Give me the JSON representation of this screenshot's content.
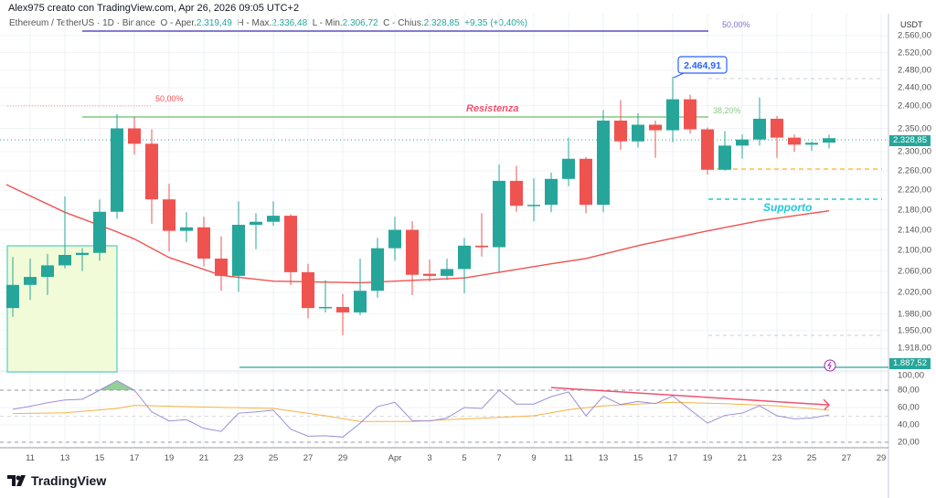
{
  "header": {
    "author_line": "Alex975 creato con TradingView.com, Apr 26, 2026 09:05 UTC+2",
    "symbol": "Ethereum / TetherUS · 1D · Binance",
    "open_label": "O - Aper.",
    "open": "2.319,49",
    "high_label": "H - Max.",
    "high": "2.336,48",
    "low_label": "L - Min.",
    "low": "2.306,72",
    "close_label": "C - Chius.",
    "close": "2.328,85",
    "change": "+9,35 (+0,40%)"
  },
  "axis": {
    "unit": "USDT",
    "price_ticks": [
      "2.560,00",
      "2.520,00",
      "2.480,00",
      "2.440,00",
      "2.400,00",
      "2.350,00",
      "2.300,00",
      "2.260,00",
      "2.220,00",
      "2.180,00",
      "2.140,00",
      "2.100,00",
      "2.060,00",
      "2.020,00",
      "1.980,00",
      "1.950,00",
      "1.918,00"
    ],
    "rsi_ticks": [
      "100,00",
      "80,00",
      "60,00",
      "40,00",
      "20,00"
    ],
    "date_ticks": [
      "11",
      "13",
      "15",
      "17",
      "19",
      "21",
      "23",
      "25",
      "27",
      "29",
      "Apr",
      "3",
      "5",
      "7",
      "9",
      "11",
      "13",
      "15",
      "17",
      "19",
      "21",
      "23",
      "25",
      "27",
      "29"
    ],
    "current_price_tag": "2.328,85",
    "level_tag": "1.887,52",
    "log_scale": true
  },
  "annotations": {
    "fib_top_label": "50,00%",
    "fib_left_label": "50,00%",
    "fib_382_label": "38,20%",
    "resistance_label": "Resistenza",
    "support_label": "Supporto",
    "high_callout": "2.464,91"
  },
  "colors": {
    "up": "#26a69a",
    "down": "#ef5350",
    "ma": "#ef5350",
    "rsi": "#9c8fd6",
    "rsi_ma": "#f5b342",
    "resistance": "#6abf69",
    "support": "#26c6da",
    "fib_top": "#5b4fc4"
  },
  "chart_data": {
    "type": "candlestick",
    "interval": "1D",
    "dates": [
      "Mar 10",
      "Mar 11",
      "Mar 12",
      "Mar 13",
      "Mar 14",
      "Mar 15",
      "Mar 16",
      "Mar 17",
      "Mar 18",
      "Mar 19",
      "Mar 20",
      "Mar 21",
      "Mar 22",
      "Mar 23",
      "Mar 24",
      "Mar 25",
      "Mar 26",
      "Mar 27",
      "Mar 28",
      "Mar 29",
      "Mar 30",
      "Mar 31",
      "Apr 1",
      "Apr 2",
      "Apr 3",
      "Apr 4",
      "Apr 5",
      "Apr 6",
      "Apr 7",
      "Apr 8",
      "Apr 9",
      "Apr 10",
      "Apr 11",
      "Apr 12",
      "Apr 13",
      "Apr 14",
      "Apr 15",
      "Apr 16",
      "Apr 17",
      "Apr 18",
      "Apr 19",
      "Apr 20",
      "Apr 21",
      "Apr 22",
      "Apr 23",
      "Apr 24",
      "Apr 25",
      "Apr 26"
    ],
    "ohlc": [
      [
        1991,
        2087,
        1975,
        2034
      ],
      [
        2034,
        2084,
        2006,
        2049
      ],
      [
        2049,
        2093,
        2015,
        2071
      ],
      [
        2071,
        2207,
        2065,
        2091
      ],
      [
        2091,
        2104,
        2060,
        2095
      ],
      [
        2095,
        2201,
        2080,
        2176
      ],
      [
        2176,
        2381,
        2162,
        2350
      ],
      [
        2350,
        2375,
        2294,
        2317
      ],
      [
        2317,
        2348,
        2152,
        2201
      ],
      [
        2201,
        2233,
        2098,
        2138
      ],
      [
        2138,
        2175,
        2116,
        2145
      ],
      [
        2145,
        2166,
        2069,
        2084
      ],
      [
        2084,
        2127,
        2023,
        2051
      ],
      [
        2051,
        2197,
        2021,
        2150
      ],
      [
        2150,
        2173,
        2102,
        2156
      ],
      [
        2156,
        2197,
        2148,
        2168
      ],
      [
        2168,
        2171,
        2034,
        2058
      ],
      [
        2058,
        2074,
        1972,
        1991
      ],
      [
        1991,
        2043,
        1983,
        1993
      ],
      [
        1993,
        2017,
        1942,
        1983
      ],
      [
        1983,
        2084,
        1978,
        2023
      ],
      [
        2023,
        2124,
        2010,
        2104
      ],
      [
        2104,
        2166,
        2080,
        2140
      ],
      [
        2140,
        2157,
        2015,
        2053
      ],
      [
        2055,
        2082,
        2040,
        2051
      ],
      [
        2051,
        2084,
        2043,
        2064
      ],
      [
        2064,
        2124,
        2018,
        2109
      ],
      [
        2109,
        2173,
        2088,
        2106
      ],
      [
        2106,
        2273,
        2058,
        2239
      ],
      [
        2239,
        2270,
        2176,
        2188
      ],
      [
        2188,
        2244,
        2157,
        2190
      ],
      [
        2190,
        2256,
        2175,
        2243
      ],
      [
        2243,
        2330,
        2228,
        2285
      ],
      [
        2285,
        2289,
        2173,
        2190
      ],
      [
        2190,
        2390,
        2175,
        2367
      ],
      [
        2367,
        2412,
        2304,
        2322
      ],
      [
        2322,
        2383,
        2309,
        2358
      ],
      [
        2358,
        2367,
        2287,
        2346
      ],
      [
        2346,
        2464.91,
        2320,
        2414
      ],
      [
        2414,
        2424,
        2339,
        2348
      ],
      [
        2348,
        2352,
        2252,
        2262
      ],
      [
        2262,
        2344,
        2260,
        2313
      ],
      [
        2313,
        2337,
        2285,
        2326
      ],
      [
        2326,
        2418,
        2313,
        2371
      ],
      [
        2371,
        2377,
        2287,
        2330
      ],
      [
        2330,
        2337,
        2300,
        2315
      ],
      [
        2315,
        2322,
        2302,
        2319
      ],
      [
        2319.49,
        2336.48,
        2306.72,
        2328.85
      ]
    ],
    "moving_average": [
      [
        "Mar 10",
        2225
      ],
      [
        "Mar 13",
        2175
      ],
      [
        "Mar 16",
        2136
      ],
      [
        "Mar 17",
        2122
      ],
      [
        "Mar 19",
        2086
      ],
      [
        "Mar 22",
        2052
      ],
      [
        "Mar 25",
        2041
      ],
      [
        "Mar 30",
        2038
      ],
      [
        "Apr 5",
        2047
      ],
      [
        "Apr 10",
        2074
      ],
      [
        "Apr 12",
        2084
      ],
      [
        "Apr 15",
        2109
      ],
      [
        "Apr 19",
        2138
      ],
      [
        "Apr 22",
        2158
      ],
      [
        "Apr 26",
        2178
      ]
    ],
    "levels": {
      "resistance": 2375,
      "support": 2205,
      "yellow_dashed": 2265,
      "fib_top": 2570,
      "fib_382": 2375,
      "fib_left": 2400,
      "upper_dotted": 2470,
      "lower_dotted": 1945,
      "horizontal_ray": 1887.52
    },
    "rsi": [
      58,
      61.5,
      65.5,
      68.7,
      69.5,
      80,
      91,
      80,
      55,
      44.5,
      46,
      36,
      32.5,
      53.5,
      55,
      57,
      35,
      27,
      27.5,
      26,
      42,
      61,
      66,
      45,
      44.5,
      48,
      60,
      59,
      80,
      64,
      64,
      72.5,
      78,
      50.5,
      73,
      63.5,
      67,
      64.5,
      73.3,
      57.5,
      42,
      51,
      53.5,
      62,
      50.5,
      47,
      48,
      51.5
    ],
    "rsi_ma": [
      [
        "Mar 10",
        53
      ],
      [
        "Mar 13",
        54
      ],
      [
        "Mar 16",
        59
      ],
      [
        "Mar 17",
        62.5
      ],
      [
        "Mar 20",
        61
      ],
      [
        "Mar 25",
        59
      ],
      [
        "Mar 28",
        50.5
      ],
      [
        "Mar 30",
        44
      ],
      [
        "Apr 2",
        44
      ],
      [
        "Apr 4",
        46
      ],
      [
        "Apr 9",
        50.5
      ],
      [
        "Apr 11",
        57.5
      ],
      [
        "Apr 13",
        62
      ],
      [
        "Apr 17",
        66
      ],
      [
        "Apr 20",
        64.5
      ],
      [
        "Apr 23",
        62
      ],
      [
        "Apr 26",
        57
      ]
    ],
    "rsi_bands": [
      80,
      50,
      20
    ],
    "rsi_divergence": [
      [
        "Apr 10",
        83
      ],
      [
        "Apr 26",
        63
      ]
    ]
  },
  "footer": {
    "logo_text": "TradingView"
  }
}
